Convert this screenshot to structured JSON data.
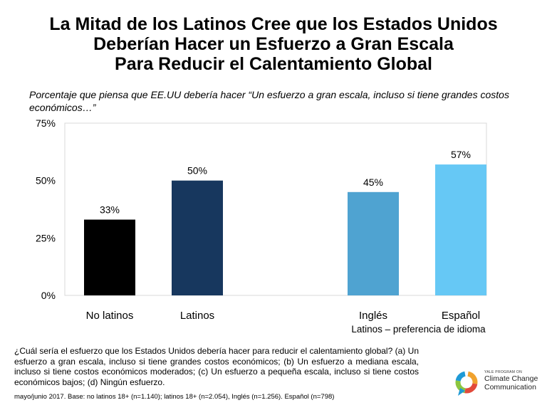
{
  "title": {
    "line1": "La Mitad de los Latinos Cree que los Estados Unidos",
    "line2": "Deberían Hacer un Esfuerzo a Gran Escala",
    "line3": "Para Reducir el Calentamiento Global"
  },
  "subtitle": "Porcentaje que piensa que EE.UU debería hacer “Un esfuerzo a gran escala, incluso si tiene grandes costos económicos…”",
  "chart_data": {
    "type": "bar",
    "title": "La Mitad de los Latinos Cree que los Estados Unidos Deberían Hacer un Esfuerzo a Gran Escala Para Reducir el Calentamiento Global",
    "categories": [
      "No latinos",
      "Latinos",
      "Inglés",
      "Español"
    ],
    "values": [
      33,
      50,
      45,
      57
    ],
    "value_labels": [
      "33%",
      "50%",
      "45%",
      "57%"
    ],
    "colors": [
      "#000000",
      "#17375e",
      "#4fa3d1",
      "#66c8f5"
    ],
    "ylim": [
      0,
      75
    ],
    "yticks": [
      0,
      25,
      50,
      75
    ],
    "ytick_labels": [
      "0%",
      "25%",
      "50%",
      "75%"
    ],
    "xlabel": "",
    "ylabel": "",
    "group_label": "Latinos – preferencia de idioma",
    "grid": false
  },
  "question": "¿Cuál sería el esfuerzo que los Estados Unidos debería hacer para reducir el calentamiento global? (a) Un esfuerzo a gran escala, incluso si tiene grandes costos económicos; (b) Un esfuerzo a mediana escala, incluso si tiene costos económicos moderados; (c) Un esfuerzo a pequeña escala, incluso si tiene costos económicos bajos; (d) Ningún esfuerzo.",
  "footnote": "mayo/junio 2017.  Base: no latinos 18+ (n=1.140); latinos 18+ (n=2.054), Inglés (n=1.256). Español (n=798)",
  "logo": {
    "small_text": "YALE PROGRAM ON",
    "line1": "Climate Change",
    "line2": "Communication",
    "colors": [
      "#f0a22e",
      "#e24a3b",
      "#8cc63f",
      "#1f9ad6"
    ]
  }
}
